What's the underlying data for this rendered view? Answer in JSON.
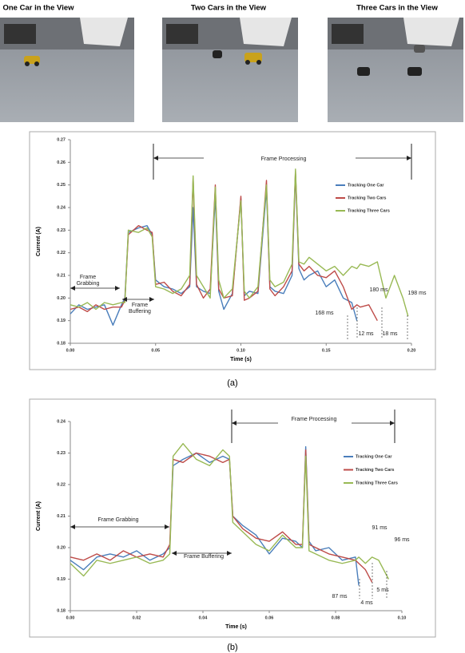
{
  "photos": {
    "captions": [
      "One Car in the View",
      "Two Cars in the View",
      "Three Cars in the View"
    ]
  },
  "chart_data": [
    {
      "type": "line",
      "caption": "(a)",
      "x_label": "Time (s)",
      "y_label": "Current (A)",
      "grid": false,
      "legend": "right",
      "xlim": [
        0,
        0.2
      ],
      "ylim": [
        0.18,
        0.27
      ],
      "xticks": [
        {
          "value": 0,
          "label": "0.00"
        },
        0.05,
        {
          "value": 0.1,
          "label": "0.10"
        },
        0.15,
        {
          "value": 0.2,
          "label": "0.20"
        }
      ],
      "yticks": [
        0.18,
        0.19,
        {
          "value": 0.2,
          "label": "0.20"
        },
        0.21,
        0.22,
        0.23,
        0.24,
        0.25,
        0.26,
        0.27
      ],
      "annotations": [
        "Frame Grabbing",
        "Frame Buffering",
        "Frame Processing",
        "168 ms",
        "180 ms",
        "198 ms",
        "12 ms",
        "18 ms"
      ],
      "x": [
        0,
        0.005,
        0.01,
        0.015,
        0.02,
        0.025,
        0.03,
        0.032,
        0.034,
        0.04,
        0.045,
        0.048,
        0.05,
        0.055,
        0.06,
        0.065,
        0.07,
        0.072,
        0.074,
        0.078,
        0.082,
        0.085,
        0.087,
        0.09,
        0.095,
        0.1,
        0.102,
        0.105,
        0.11,
        0.115,
        0.117,
        0.12,
        0.125,
        0.13,
        0.132,
        0.134,
        0.137,
        0.14,
        0.145,
        0.15,
        0.155,
        0.16,
        0.165,
        0.168,
        0.17,
        0.175,
        0.18,
        0.185,
        0.19,
        0.195,
        0.198
      ],
      "series": [
        {
          "name": "Tracking One Car",
          "color": "#4a7ebb",
          "values": [
            0.193,
            0.197,
            0.195,
            0.196,
            0.197,
            0.188,
            0.197,
            0.2,
            0.229,
            0.231,
            0.232,
            0.228,
            0.208,
            0.205,
            0.204,
            0.202,
            0.205,
            0.24,
            0.205,
            0.203,
            0.202,
            0.245,
            0.203,
            0.195,
            0.202,
            0.244,
            0.201,
            0.203,
            0.202,
            0.248,
            0.205,
            0.203,
            0.202,
            0.21,
            0.255,
            0.213,
            0.208,
            0.21,
            0.212,
            0.205,
            0.208,
            0.2,
            0.198,
            0.19,
            null,
            null,
            null,
            null,
            null,
            null,
            null
          ]
        },
        {
          "name": "Tracking Two Cars",
          "color": "#be4b48",
          "values": [
            0.195,
            0.196,
            0.194,
            0.197,
            0.195,
            0.196,
            0.196,
            0.199,
            0.228,
            0.232,
            0.23,
            0.229,
            0.206,
            0.207,
            0.203,
            0.201,
            0.206,
            0.253,
            0.206,
            0.2,
            0.204,
            0.25,
            0.204,
            0.2,
            0.201,
            0.245,
            0.199,
            0.2,
            0.203,
            0.252,
            0.204,
            0.201,
            0.205,
            0.212,
            0.256,
            0.215,
            0.212,
            0.214,
            0.21,
            0.209,
            0.212,
            0.205,
            0.195,
            0.197,
            0.196,
            0.197,
            0.19,
            null,
            null,
            null,
            null
          ]
        },
        {
          "name": "Tracking Three Cars",
          "color": "#98b954",
          "values": [
            0.197,
            0.196,
            0.198,
            0.195,
            0.198,
            0.197,
            0.198,
            0.198,
            0.23,
            0.229,
            0.231,
            0.227,
            0.205,
            0.204,
            0.202,
            0.204,
            0.21,
            0.254,
            0.21,
            0.205,
            0.2,
            0.249,
            0.208,
            0.2,
            0.204,
            0.243,
            0.203,
            0.2,
            0.205,
            0.25,
            0.208,
            0.205,
            0.207,
            0.215,
            0.257,
            0.216,
            0.215,
            0.218,
            0.215,
            0.212,
            0.214,
            0.21,
            0.214,
            0.213,
            0.215,
            0.214,
            0.216,
            0.2,
            0.21,
            0.2,
            0.192
          ]
        }
      ]
    },
    {
      "type": "line",
      "caption": "(b)",
      "x_label": "Time (s)",
      "y_label": "Current (A)",
      "grid": false,
      "legend": "right",
      "xlim": [
        0,
        0.1
      ],
      "ylim": [
        0.18,
        0.24
      ],
      "xticks": [
        {
          "value": 0,
          "label": "0.00"
        },
        0.02,
        0.04,
        0.06,
        0.08,
        {
          "value": 0.1,
          "label": "0.10"
        }
      ],
      "yticks": [
        0.18,
        0.19,
        {
          "value": 0.2,
          "label": "0.20"
        },
        0.21,
        0.22,
        0.23,
        0.24
      ],
      "annotations": [
        "Frame Grabbing",
        "Frame Buffering",
        "Frame Processing",
        "87 ms",
        "91 ms",
        "96 ms",
        "4 ms",
        "5 ms"
      ],
      "x": [
        0,
        0.004,
        0.008,
        0.012,
        0.016,
        0.02,
        0.024,
        0.028,
        0.03,
        0.031,
        0.034,
        0.038,
        0.042,
        0.046,
        0.048,
        0.049,
        0.052,
        0.056,
        0.06,
        0.064,
        0.068,
        0.07,
        0.071,
        0.072,
        0.074,
        0.078,
        0.082,
        0.086,
        0.087,
        0.089,
        0.091,
        0.093,
        0.096
      ],
      "series": [
        {
          "name": "Tracking One Car",
          "color": "#4a7ebb",
          "values": [
            0.196,
            0.193,
            0.197,
            0.198,
            0.197,
            0.199,
            0.196,
            0.198,
            0.2,
            0.226,
            0.228,
            0.23,
            0.227,
            0.229,
            0.228,
            0.21,
            0.207,
            0.204,
            0.198,
            0.203,
            0.202,
            0.2,
            0.232,
            0.202,
            0.199,
            0.2,
            0.196,
            0.197,
            0.188,
            null,
            null,
            null,
            null
          ]
        },
        {
          "name": "Tracking Two Cars",
          "color": "#be4b48",
          "values": [
            0.197,
            0.196,
            0.198,
            0.196,
            0.199,
            0.197,
            0.198,
            0.197,
            0.201,
            0.228,
            0.227,
            0.23,
            0.229,
            0.227,
            0.228,
            0.21,
            0.206,
            0.203,
            0.202,
            0.205,
            0.201,
            0.201,
            0.231,
            0.201,
            0.2,
            0.198,
            0.197,
            0.196,
            0.195,
            0.193,
            0.189,
            null,
            null
          ]
        },
        {
          "name": "Tracking Three Cars",
          "color": "#98b954",
          "values": [
            0.195,
            0.191,
            0.196,
            0.195,
            0.196,
            0.197,
            0.195,
            0.196,
            0.198,
            0.229,
            0.233,
            0.228,
            0.226,
            0.231,
            0.229,
            0.208,
            0.205,
            0.201,
            0.199,
            0.204,
            0.2,
            0.2,
            0.229,
            0.199,
            0.198,
            0.196,
            0.195,
            0.196,
            0.197,
            0.195,
            0.197,
            0.196,
            0.19
          ]
        }
      ]
    }
  ]
}
